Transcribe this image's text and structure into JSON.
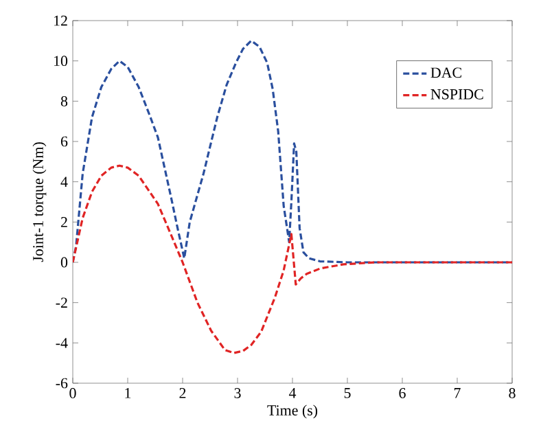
{
  "chart_data": {
    "type": "line",
    "xlabel": "Time (s)",
    "ylabel": "Joint-1 torque (Nm)",
    "xlim": [
      0,
      8
    ],
    "ylim": [
      -6,
      12
    ],
    "xticks": [
      0,
      1,
      2,
      3,
      4,
      5,
      6,
      7,
      8
    ],
    "yticks": [
      -6,
      -4,
      -2,
      0,
      2,
      4,
      6,
      8,
      10,
      12
    ],
    "grid": false,
    "legend": "top right",
    "series": [
      {
        "name": "DAC",
        "color": "#2a4f9e",
        "line_style": "dashed",
        "x": [
          0,
          0.06,
          0.18,
          0.35,
          0.52,
          0.7,
          0.85,
          1.0,
          1.2,
          1.4,
          1.55,
          1.8,
          1.9,
          2.03,
          2.13,
          2.38,
          2.63,
          2.8,
          2.97,
          3.1,
          3.25,
          3.4,
          3.54,
          3.64,
          3.74,
          3.84,
          3.94,
          3.98,
          4.03,
          4.07,
          4.13,
          4.2,
          4.3,
          4.5,
          5,
          6,
          7,
          8
        ],
        "values": [
          0,
          0.8,
          4.4,
          7.2,
          8.7,
          9.6,
          10,
          9.7,
          8.7,
          7.3,
          6.2,
          3.1,
          1.8,
          0.2,
          2.0,
          4.4,
          7.2,
          8.8,
          9.9,
          10.6,
          11,
          10.7,
          9.9,
          8.6,
          6.5,
          2.8,
          1.0,
          3.0,
          5.9,
          5.5,
          1.7,
          0.5,
          0.2,
          0.05,
          0,
          0,
          0,
          0
        ]
      },
      {
        "name": "NSPIDC",
        "color": "#e02424",
        "line_style": "dashed",
        "x": [
          0,
          0.18,
          0.35,
          0.52,
          0.7,
          0.85,
          1.0,
          1.2,
          1.4,
          1.55,
          1.8,
          2.0,
          2.27,
          2.52,
          2.77,
          2.93,
          3.1,
          3.25,
          3.43,
          3.68,
          3.84,
          3.98,
          4.06,
          4.15,
          4.26,
          4.51,
          4.93,
          5.5,
          6,
          7,
          8
        ],
        "values": [
          0,
          2.2,
          3.5,
          4.3,
          4.7,
          4.8,
          4.7,
          4.3,
          3.5,
          2.9,
          1.3,
          0,
          -2.0,
          -3.4,
          -4.35,
          -4.5,
          -4.4,
          -4.1,
          -3.45,
          -1.75,
          -0.4,
          1.4,
          -1.1,
          -0.8,
          -0.57,
          -0.3,
          -0.1,
          0,
          0,
          0,
          0
        ]
      }
    ]
  }
}
